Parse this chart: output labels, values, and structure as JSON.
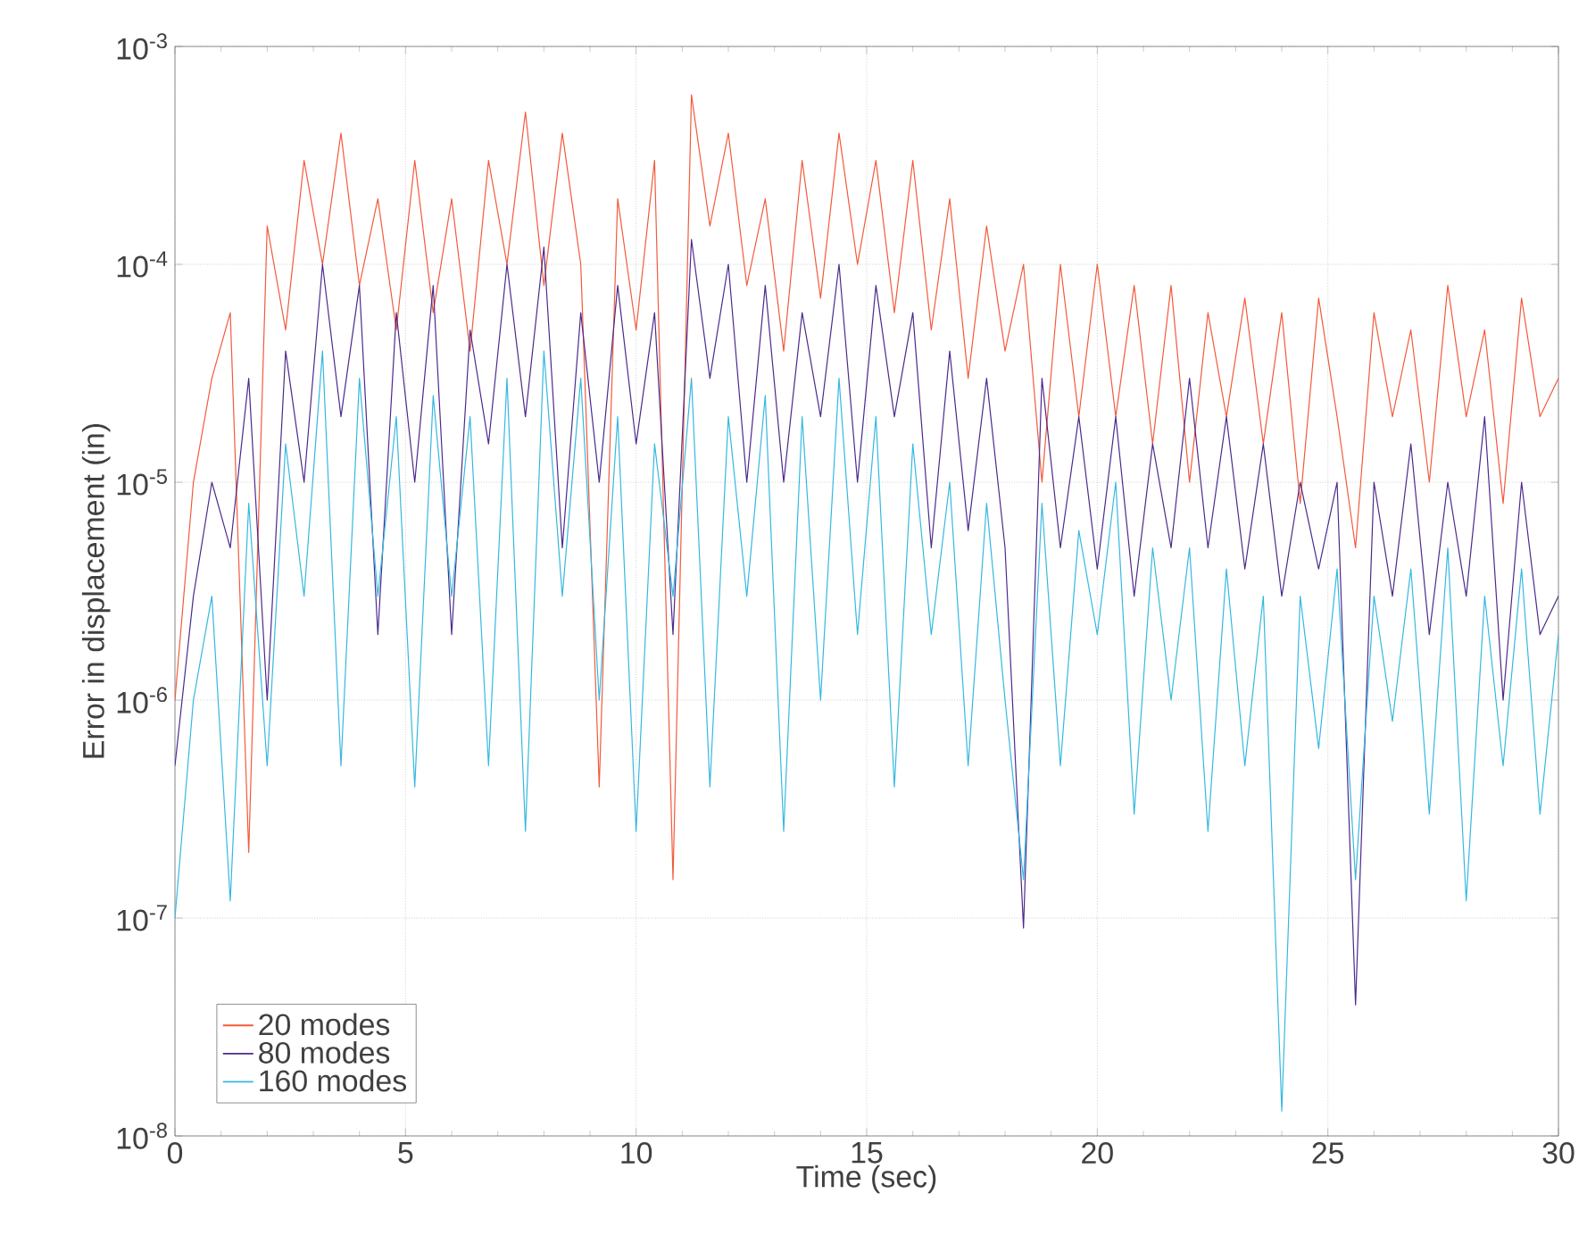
{
  "chart_data": {
    "type": "line",
    "xlabel": "Time (sec)",
    "ylabel": "Error in displacement (in)",
    "x": [
      0,
      0.4,
      0.8,
      1.2,
      1.6,
      2.0,
      2.4,
      2.8,
      3.2,
      3.6,
      4.0,
      4.4,
      4.8,
      5.2,
      5.6,
      6.0,
      6.4,
      6.8,
      7.2,
      7.6,
      8.0,
      8.4,
      8.8,
      9.2,
      9.6,
      10.0,
      10.4,
      10.8,
      11.2,
      11.6,
      12.0,
      12.4,
      12.8,
      13.2,
      13.6,
      14.0,
      14.4,
      14.8,
      15.2,
      15.6,
      16.0,
      16.4,
      16.8,
      17.2,
      17.6,
      18.0,
      18.4,
      18.8,
      19.2,
      19.6,
      20.0,
      20.4,
      20.8,
      21.2,
      21.6,
      22.0,
      22.4,
      22.8,
      23.2,
      23.6,
      24.0,
      24.4,
      24.8,
      25.2,
      25.6,
      26.0,
      26.4,
      26.8,
      27.2,
      27.6,
      28.0,
      28.4,
      28.8,
      29.2,
      29.6,
      30.0
    ],
    "series": [
      {
        "name": "20 modes",
        "color": "#f25a3c",
        "values": [
          1e-06,
          1e-05,
          3e-05,
          6e-05,
          2e-07,
          0.00015,
          5e-05,
          0.0003,
          0.0001,
          0.0004,
          8e-05,
          0.0002,
          5e-05,
          0.0003,
          6e-05,
          0.0002,
          4e-05,
          0.0003,
          0.0001,
          0.0005,
          8e-05,
          0.0004,
          0.0001,
          4e-07,
          0.0002,
          5e-05,
          0.0003,
          1.5e-07,
          0.0006,
          0.00015,
          0.0004,
          8e-05,
          0.0002,
          4e-05,
          0.0003,
          7e-05,
          0.0004,
          0.0001,
          0.0003,
          6e-05,
          0.0003,
          5e-05,
          0.0002,
          3e-05,
          0.00015,
          4e-05,
          0.0001,
          1e-05,
          0.0001,
          2e-05,
          0.0001,
          2e-05,
          8e-05,
          1.5e-05,
          8e-05,
          1e-05,
          6e-05,
          2e-05,
          7e-05,
          1.5e-05,
          6e-05,
          8e-06,
          7e-05,
          2e-05,
          5e-06,
          6e-05,
          2e-05,
          5e-05,
          1e-05,
          8e-05,
          2e-05,
          5e-05,
          8e-06,
          7e-05,
          2e-05,
          3e-05
        ]
      },
      {
        "name": "80 modes",
        "color": "#4b2a8c",
        "values": [
          5e-07,
          3e-06,
          1e-05,
          5e-06,
          3e-05,
          1e-06,
          4e-05,
          1e-05,
          0.0001,
          2e-05,
          8e-05,
          2e-06,
          6e-05,
          1e-05,
          8e-05,
          2e-06,
          5e-05,
          1.5e-05,
          0.0001,
          2e-05,
          0.00012,
          5e-06,
          6e-05,
          1e-05,
          8e-05,
          1.5e-05,
          6e-05,
          2e-06,
          0.00013,
          3e-05,
          0.0001,
          1e-05,
          8e-05,
          1e-05,
          6e-05,
          2e-05,
          0.0001,
          1e-05,
          8e-05,
          2e-05,
          6e-05,
          5e-06,
          4e-05,
          6e-06,
          3e-05,
          5e-06,
          9e-08,
          3e-05,
          5e-06,
          2e-05,
          4e-06,
          2e-05,
          3e-06,
          1.5e-05,
          5e-06,
          3e-05,
          5e-06,
          2e-05,
          4e-06,
          1.5e-05,
          3e-06,
          1e-05,
          4e-06,
          1e-05,
          4e-08,
          1e-05,
          3e-06,
          1.5e-05,
          2e-06,
          1e-05,
          3e-06,
          2e-05,
          1e-06,
          1e-05,
          2e-06,
          3e-06
        ]
      },
      {
        "name": "160 modes",
        "color": "#35b8e0",
        "values": [
          1e-07,
          1e-06,
          3e-06,
          1.2e-07,
          8e-06,
          5e-07,
          1.5e-05,
          3e-06,
          4e-05,
          5e-07,
          3e-05,
          3e-06,
          2e-05,
          4e-07,
          2.5e-05,
          3e-06,
          2e-05,
          5e-07,
          3e-05,
          2.5e-07,
          4e-05,
          3e-06,
          3e-05,
          1e-06,
          2e-05,
          2.5e-07,
          1.5e-05,
          3e-06,
          3e-05,
          4e-07,
          2e-05,
          3e-06,
          2.5e-05,
          2.5e-07,
          2e-05,
          1e-06,
          3e-05,
          2e-06,
          2e-05,
          4e-07,
          1.5e-05,
          2e-06,
          1e-05,
          5e-07,
          8e-06,
          1e-06,
          1.5e-07,
          8e-06,
          5e-07,
          6e-06,
          2e-06,
          1e-05,
          3e-07,
          5e-06,
          1e-06,
          5e-06,
          2.5e-07,
          4e-06,
          5e-07,
          3e-06,
          1.3e-08,
          3e-06,
          6e-07,
          4e-06,
          1.5e-07,
          3e-06,
          8e-07,
          4e-06,
          3e-07,
          5e-06,
          1.2e-07,
          3e-06,
          5e-07,
          4e-06,
          3e-07,
          2e-06
        ]
      }
    ],
    "log": "y",
    "grid": true,
    "legend": "bottom left",
    "xlim": [
      0,
      30
    ],
    "ylim": [
      1e-08,
      0.001
    ],
    "xticks": [
      0,
      5,
      10,
      15,
      20,
      25,
      30
    ],
    "yticks": [
      {
        "value": 1e-08,
        "label": "10$^{-8}$"
      },
      {
        "value": 1e-07,
        "label": "10$^{-7}$"
      },
      {
        "value": 1e-06,
        "label": "10$^{-6}$"
      },
      {
        "value": 1e-05,
        "label": "10$^{-5}$"
      },
      {
        "value": 0.0001,
        "label": "10$^{-4}$"
      },
      {
        "value": 0.001,
        "label": "10$^{-3}$"
      }
    ]
  }
}
